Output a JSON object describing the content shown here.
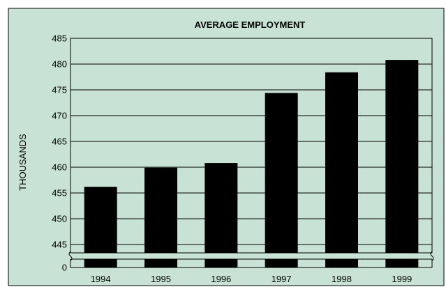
{
  "chart_data": {
    "type": "bar",
    "title": "AVERAGE EMPLOYMENT",
    "ylabel": "THOUSANDS",
    "xlabel": "",
    "categories": [
      "1994",
      "1995",
      "1996",
      "1997",
      "1998",
      "1999"
    ],
    "values": [
      456.2,
      459.9,
      460.8,
      474.4,
      478.4,
      480.8
    ],
    "y_ticks": [
      445,
      450,
      455,
      460,
      465,
      470,
      475,
      480,
      485
    ],
    "y_baseline_label": "0",
    "ylim": [
      445,
      485
    ],
    "axis_break": true,
    "grid": true,
    "legend": "none",
    "colors": {
      "background": "#c8e3d6",
      "bar": "#000000",
      "grid": "#000000"
    }
  }
}
